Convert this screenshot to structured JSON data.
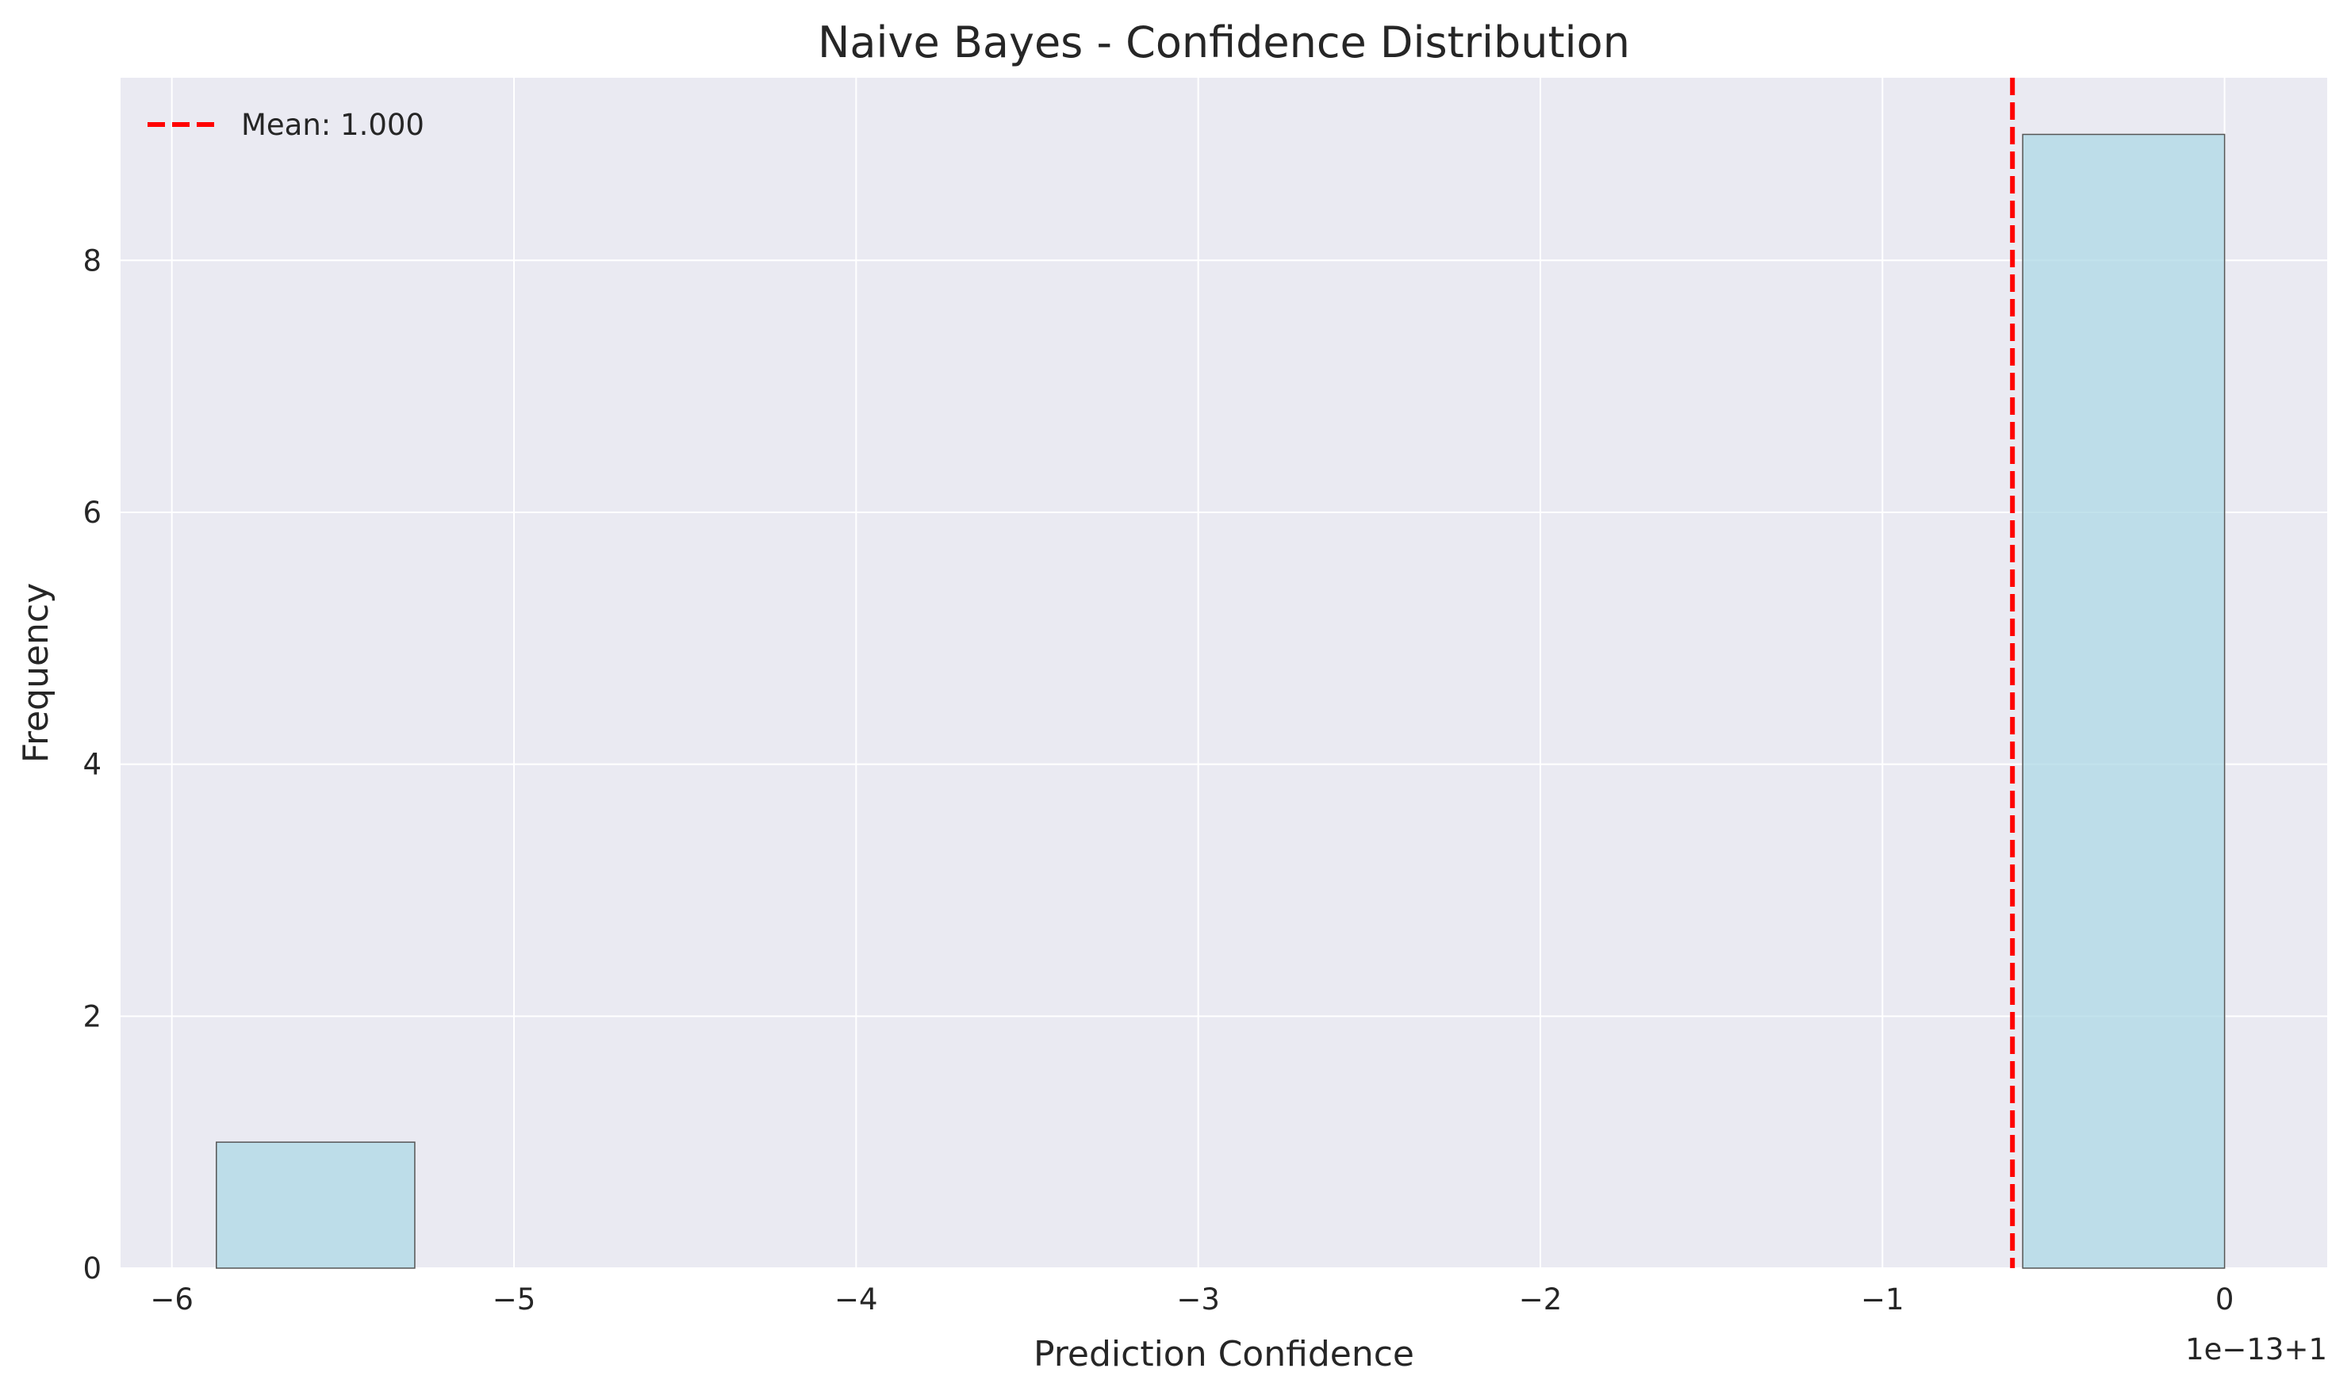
{
  "chart_data": {
    "type": "bar",
    "title": "Naive Bayes - Confidence Distribution",
    "xlabel": "Prediction Confidence",
    "ylabel": "Frequency",
    "x_offset_text": "1e−13+1",
    "xlim": [
      -6.15,
      0.3
    ],
    "ylim": [
      0,
      9.45
    ],
    "xticks": [
      -6,
      -5,
      -4,
      -3,
      -2,
      -1,
      0
    ],
    "xtick_labels": [
      "−6",
      "−5",
      "−4",
      "−3",
      "−2",
      "−1",
      "0"
    ],
    "yticks": [
      0,
      2,
      4,
      6,
      8
    ],
    "ytick_labels": [
      "0",
      "2",
      "4",
      "6",
      "8"
    ],
    "grid": true,
    "bins": [
      {
        "x0": -5.87,
        "x1": -5.29,
        "count": 1
      },
      {
        "x0": -0.59,
        "x1": 0.0,
        "count": 9
      }
    ],
    "mean_line": {
      "x": -0.62,
      "label": "Mean: 1.000"
    },
    "legend_position": "top-left",
    "colors": {
      "bar_fill": "#add8e6",
      "bar_edge": "#555555",
      "mean_line": "#ff0000",
      "plot_bg": "#eaeaf2",
      "grid": "#ffffff"
    }
  }
}
